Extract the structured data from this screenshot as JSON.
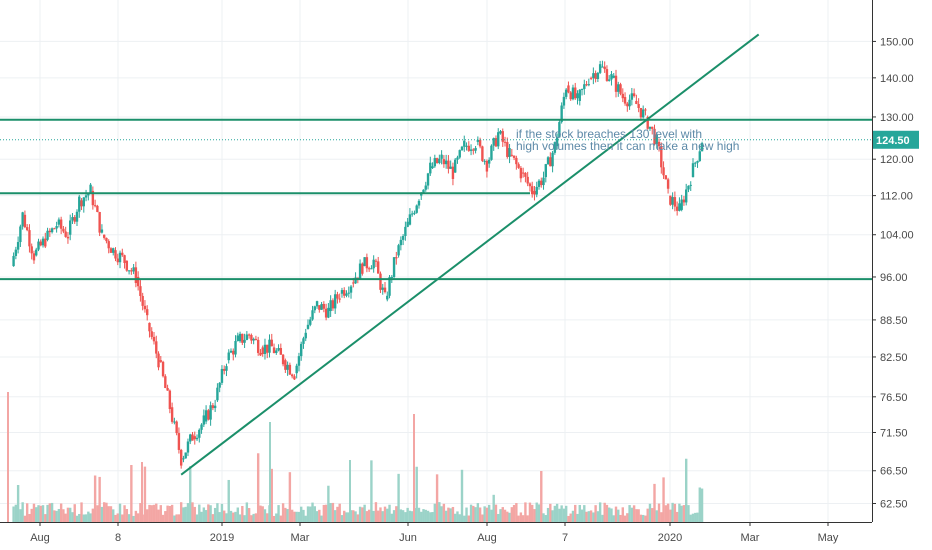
{
  "chart_data": {
    "type": "candlestick",
    "y_axis": {
      "scale": "log",
      "ylim": [
        61.5,
        158
      ],
      "ticks": [
        62.5,
        66.5,
        71.5,
        76.5,
        82.5,
        88.5,
        96.0,
        104.0,
        112.0,
        120.0,
        130.0,
        140.0,
        150.0
      ],
      "tick_labels": [
        "62.50",
        "66.50",
        "71.50",
        "76.50",
        "82.50",
        "88.50",
        "96.00",
        "104.00",
        "112.00",
        "120.00",
        "130.00",
        "140.00",
        "150.00"
      ],
      "position": "right"
    },
    "x_axis": {
      "tick_labels": [
        "Aug",
        "8",
        "2019",
        "Mar",
        "Jun",
        "Aug",
        "7",
        "2020",
        "Mar",
        "May"
      ]
    },
    "last_price": {
      "value": 124.5,
      "label": "124.50",
      "color": "#26a69a"
    },
    "horizontal_lines": [
      {
        "price": 129.3,
        "color": "#1b8f6a"
      },
      {
        "price": 112.5,
        "color": "#1b8f6a"
      },
      {
        "price": 95.6,
        "color": "#1b8f6a"
      }
    ],
    "trendline": {
      "from": {
        "date": "2018-10-08",
        "price": 66.0
      },
      "to": {
        "date": "2019-09-30",
        "price": 152.0
      },
      "color": "#1b8f6a"
    },
    "annotation": {
      "lines": [
        "if the stock breaches 130 level with",
        "high volumes then it can make a new high"
      ],
      "color": "#5d8aa8"
    },
    "price_path": [
      {
        "date": "2018-06-25",
        "close": 98
      },
      {
        "date": "2018-07-02",
        "close": 108
      },
      {
        "date": "2018-07-09",
        "close": 100
      },
      {
        "date": "2018-07-16",
        "close": 103
      },
      {
        "date": "2018-07-23",
        "close": 106
      },
      {
        "date": "2018-07-30",
        "close": 104
      },
      {
        "date": "2018-08-06",
        "close": 111
      },
      {
        "date": "2018-08-13",
        "close": 113
      },
      {
        "date": "2018-08-20",
        "close": 104
      },
      {
        "date": "2018-08-27",
        "close": 101
      },
      {
        "date": "2018-09-03",
        "close": 99
      },
      {
        "date": "2018-09-10",
        "close": 96
      },
      {
        "date": "2018-09-17",
        "close": 88
      },
      {
        "date": "2018-09-24",
        "close": 82
      },
      {
        "date": "2018-10-01",
        "close": 75
      },
      {
        "date": "2018-10-08",
        "close": 68
      },
      {
        "date": "2018-10-15",
        "close": 71
      },
      {
        "date": "2018-10-22",
        "close": 73
      },
      {
        "date": "2018-10-29",
        "close": 76
      },
      {
        "date": "2018-11-05",
        "close": 82
      },
      {
        "date": "2018-11-12",
        "close": 85
      },
      {
        "date": "2018-11-19",
        "close": 86
      },
      {
        "date": "2018-11-26",
        "close": 84
      },
      {
        "date": "2018-12-03",
        "close": 84
      },
      {
        "date": "2018-12-10",
        "close": 82
      },
      {
        "date": "2018-12-17",
        "close": 80
      },
      {
        "date": "2018-12-24",
        "close": 87
      },
      {
        "date": "2018-12-31",
        "close": 91
      },
      {
        "date": "2019-01-07",
        "close": 90
      },
      {
        "date": "2019-01-14",
        "close": 93
      },
      {
        "date": "2019-01-21",
        "close": 95
      },
      {
        "date": "2019-01-28",
        "close": 98
      },
      {
        "date": "2019-02-04",
        "close": 99
      },
      {
        "date": "2019-02-11",
        "close": 92
      },
      {
        "date": "2019-02-18",
        "close": 100
      },
      {
        "date": "2019-02-25",
        "close": 106
      },
      {
        "date": "2019-03-04",
        "close": 112
      },
      {
        "date": "2019-03-11",
        "close": 118
      },
      {
        "date": "2019-03-18",
        "close": 120
      },
      {
        "date": "2019-03-25",
        "close": 117
      },
      {
        "date": "2019-04-01",
        "close": 123
      },
      {
        "date": "2019-04-08",
        "close": 124
      },
      {
        "date": "2019-04-15",
        "close": 119
      },
      {
        "date": "2019-04-22",
        "close": 126
      },
      {
        "date": "2019-04-29",
        "close": 121
      },
      {
        "date": "2019-05-06",
        "close": 117
      },
      {
        "date": "2019-05-13",
        "close": 113
      },
      {
        "date": "2019-05-20",
        "close": 116
      },
      {
        "date": "2019-05-27",
        "close": 123
      },
      {
        "date": "2019-06-03",
        "close": 138
      },
      {
        "date": "2019-06-10",
        "close": 134
      },
      {
        "date": "2019-06-17",
        "close": 140
      },
      {
        "date": "2019-06-24",
        "close": 143
      },
      {
        "date": "2019-07-01",
        "close": 140
      },
      {
        "date": "2019-07-08",
        "close": 135
      },
      {
        "date": "2019-07-15",
        "close": 134
      },
      {
        "date": "2019-07-22",
        "close": 130
      },
      {
        "date": "2019-07-29",
        "close": 124
      },
      {
        "date": "2019-08-05",
        "close": 112
      },
      {
        "date": "2019-08-12",
        "close": 109
      },
      {
        "date": "2019-08-19",
        "close": 116
      },
      {
        "date": "2019-08-26",
        "close": 124.5
      }
    ]
  },
  "colors": {
    "up": "#26a69a",
    "down": "#ef5350",
    "up_volume": "#9bd3c8",
    "down_volume": "#f3a6a4",
    "grid": "#edf0f3",
    "axis_text": "#4a4a4a"
  }
}
